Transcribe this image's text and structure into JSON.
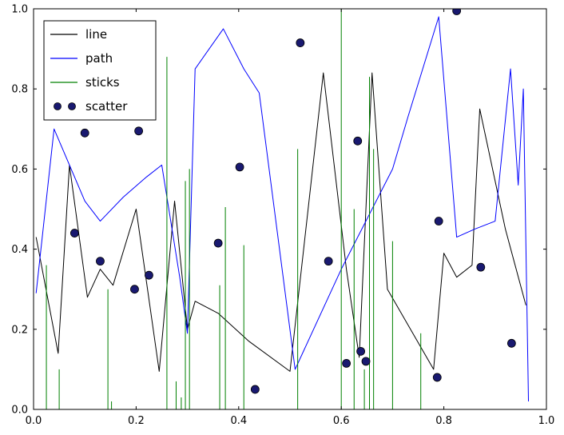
{
  "colors": {
    "background": "#ffffff",
    "axes": "#000000",
    "line_series": "#000000",
    "path_series": "#0000ff",
    "sticks_series": "#008000",
    "scatter_series": "#191970"
  },
  "chart_data": {
    "type": "line",
    "title": "",
    "xlabel": "",
    "ylabel": "",
    "xlim": [
      0.0,
      1.0
    ],
    "ylim": [
      0.0,
      1.0
    ],
    "grid": false,
    "xticks": {
      "values": [
        0.0,
        0.2,
        0.4,
        0.6,
        0.8,
        1.0
      ],
      "labels": [
        "0.0",
        "0.2",
        "0.4",
        "0.6",
        "0.8",
        "1.0"
      ]
    },
    "yticks": {
      "values": [
        0.0,
        0.2,
        0.4,
        0.6,
        0.8,
        1.0
      ],
      "labels": [
        "0.0",
        "0.2",
        "0.4",
        "0.6",
        "0.8",
        "1.0"
      ]
    },
    "legend": {
      "position": "upper left",
      "entries": [
        "line",
        "path",
        "sticks",
        "scatter"
      ]
    },
    "series": [
      {
        "name": "line",
        "type": "line",
        "color": "#000000",
        "x": [
          0.005,
          0.048,
          0.07,
          0.105,
          0.13,
          0.155,
          0.2,
          0.245,
          0.275,
          0.3,
          0.315,
          0.36,
          0.42,
          0.5,
          0.565,
          0.61,
          0.635,
          0.66,
          0.69,
          0.78,
          0.8,
          0.825,
          0.855,
          0.87,
          0.92,
          0.96
        ],
        "y": [
          0.43,
          0.14,
          0.61,
          0.28,
          0.35,
          0.31,
          0.5,
          0.095,
          0.52,
          0.2,
          0.27,
          0.24,
          0.17,
          0.095,
          0.84,
          0.35,
          0.13,
          0.84,
          0.3,
          0.1,
          0.39,
          0.33,
          0.36,
          0.75,
          0.45,
          0.26
        ]
      },
      {
        "name": "path",
        "type": "line",
        "color": "#0000ff",
        "x": [
          0.005,
          0.04,
          0.1,
          0.13,
          0.175,
          0.22,
          0.25,
          0.285,
          0.3,
          0.315,
          0.37,
          0.41,
          0.44,
          0.51,
          0.6,
          0.7,
          0.73,
          0.79,
          0.825,
          0.86,
          0.9,
          0.93,
          0.945,
          0.955,
          0.965
        ],
        "y": [
          0.29,
          0.7,
          0.52,
          0.47,
          0.53,
          0.58,
          0.61,
          0.33,
          0.19,
          0.85,
          0.95,
          0.85,
          0.79,
          0.1,
          0.35,
          0.6,
          0.73,
          0.98,
          0.43,
          0.45,
          0.47,
          0.85,
          0.56,
          0.8,
          0.02
        ]
      },
      {
        "name": "sticks",
        "type": "sticks",
        "color": "#008000",
        "x": [
          0.025,
          0.05,
          0.145,
          0.152,
          0.26,
          0.278,
          0.288,
          0.296,
          0.304,
          0.363,
          0.374,
          0.41,
          0.515,
          0.6,
          0.625,
          0.645,
          0.655,
          0.663,
          0.7,
          0.755
        ],
        "y": [
          0.36,
          0.1,
          0.3,
          0.02,
          0.88,
          0.07,
          0.03,
          0.57,
          0.6,
          0.31,
          0.505,
          0.41,
          0.65,
          1.0,
          0.5,
          0.1,
          0.83,
          0.65,
          0.42,
          0.19
        ]
      },
      {
        "name": "scatter",
        "type": "scatter",
        "color": "#191970",
        "edge_color": "#000000",
        "x": [
          0.08,
          0.1,
          0.13,
          0.197,
          0.205,
          0.225,
          0.36,
          0.402,
          0.432,
          0.52,
          0.575,
          0.61,
          0.632,
          0.638,
          0.648,
          0.787,
          0.79,
          0.825,
          0.872,
          0.932
        ],
        "y": [
          0.44,
          0.69,
          0.37,
          0.3,
          0.695,
          0.335,
          0.415,
          0.605,
          0.05,
          0.915,
          0.37,
          0.115,
          0.67,
          0.145,
          0.12,
          0.08,
          0.47,
          0.995,
          0.355,
          0.165
        ]
      }
    ]
  }
}
